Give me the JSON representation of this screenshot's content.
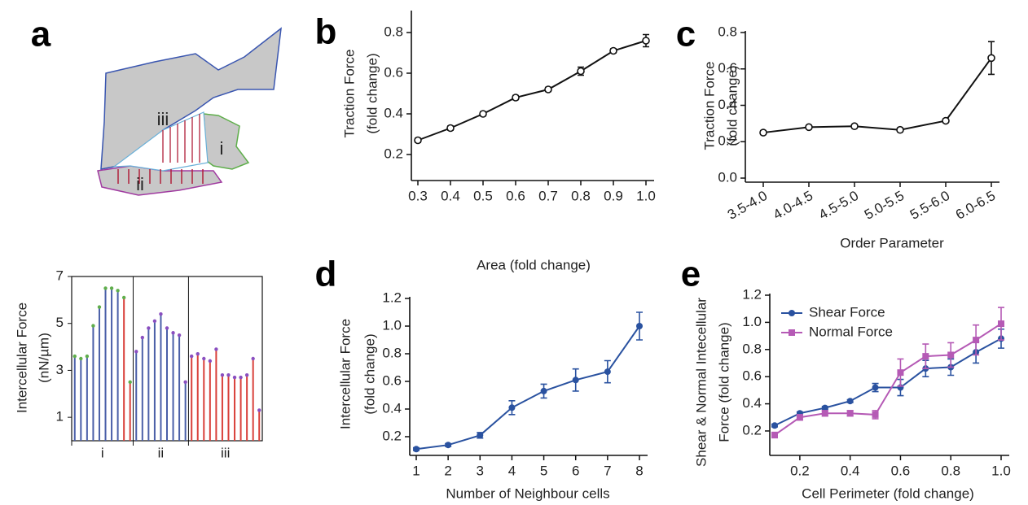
{
  "diagram": {
    "labels": [
      "iii",
      "i",
      "ii"
    ]
  },
  "chart_data": [
    {
      "type": "lollipop",
      "panel": "a",
      "ylabel": [
        "Intercellular Force",
        "(nN/µm)"
      ],
      "categories": [
        "i",
        "ii",
        "iii"
      ],
      "groups": [
        {
          "values": [
            3.6,
            3.5,
            3.6,
            4.9,
            5.7,
            6.5,
            6.5,
            6.4,
            6.1,
            2.5
          ],
          "colors": [
            "#4a5fa8",
            "#4a5fa8",
            "#4a5fa8",
            "#4a5fa8",
            "#4a5fa8",
            "#4a5fa8",
            "#4a5fa8",
            "#4a5fa8",
            "#d9403a",
            "#d9403a"
          ],
          "head_color": "#5fae4b"
        },
        {
          "values": [
            3.8,
            4.4,
            4.8,
            5.1,
            5.4,
            4.8,
            4.6,
            4.5,
            2.5
          ],
          "colors": [
            "#4a5fa8",
            "#4a5fa8",
            "#4a5fa8",
            "#4a5fa8",
            "#4a5fa8",
            "#4a5fa8",
            "#4a5fa8",
            "#4a5fa8",
            "#4a5fa8"
          ],
          "head_color": "#8a4fc0"
        },
        {
          "values": [
            3.6,
            3.7,
            3.5,
            3.4,
            3.9,
            2.8,
            2.8,
            2.7,
            2.7,
            2.8,
            3.5,
            1.3
          ],
          "colors": [
            "#d9403a",
            "#d9403a",
            "#d9403a",
            "#d9403a",
            "#d9403a",
            "#d9403a",
            "#d9403a",
            "#d9403a",
            "#d9403a",
            "#d9403a",
            "#d9403a",
            "#d9403a"
          ],
          "head_color": "#8a4fc0"
        }
      ],
      "ylim": [
        0,
        7
      ],
      "yticks": [
        1,
        3,
        5,
        7
      ]
    },
    {
      "type": "line",
      "panel": "b",
      "ylabel": [
        "Traction Force",
        "(fold change)"
      ],
      "xlabel": "Area (fold change)",
      "x": [
        0.3,
        0.4,
        0.5,
        0.6,
        0.7,
        0.8,
        0.9,
        1.0
      ],
      "series": [
        {
          "color": "#111111",
          "marker": "open-circle",
          "values": [
            0.27,
            0.33,
            0.4,
            0.48,
            0.52,
            0.61,
            0.71,
            0.76
          ],
          "errors": [
            0.01,
            0.01,
            0.01,
            0.01,
            0.01,
            0.02,
            0.01,
            0.03
          ]
        }
      ],
      "xlim": [
        0.3,
        1.0
      ],
      "xticks": [
        0.3,
        0.4,
        0.5,
        0.6,
        0.7,
        0.8,
        0.9,
        {
          "value": 1.0,
          "label": "1.0"
        }
      ],
      "ylim": [
        0.1,
        0.9
      ],
      "yticks": [
        0.2,
        0.4,
        0.6,
        0.8
      ]
    },
    {
      "type": "line",
      "panel": "c",
      "ylabel": [
        "Traction Force",
        "(fold change)"
      ],
      "xlabel": "Order Parameter",
      "categories": [
        "3.5-4.0",
        "4.0-4.5",
        "4.5-5.0",
        "5.0-5.5",
        "5.5-6.0",
        "6.0-6.5"
      ],
      "series": [
        {
          "color": "#111111",
          "marker": "open-circle",
          "values": [
            0.25,
            0.28,
            0.285,
            0.265,
            0.315,
            0.66
          ],
          "errors": [
            0.01,
            0.01,
            0.01,
            0.01,
            0.01,
            0.09
          ]
        }
      ],
      "ylim": [
        0,
        0.8
      ],
      "yticks": [
        {
          "value": 0,
          "label": "0.0"
        },
        0.2,
        0.4,
        0.6,
        0.8
      ]
    },
    {
      "type": "line",
      "panel": "d",
      "ylabel": [
        "Intercellular Force",
        "(fold change)"
      ],
      "xlabel": "Number of Neighbour cells",
      "x": [
        1,
        2,
        3,
        4,
        5,
        6,
        7,
        8
      ],
      "series": [
        {
          "color": "#2a52a0",
          "marker": "circle",
          "values": [
            0.11,
            0.14,
            0.21,
            0.41,
            0.53,
            0.61,
            0.67,
            1.0
          ],
          "errors": [
            0.01,
            0.01,
            0.02,
            0.05,
            0.05,
            0.08,
            0.08,
            0.1
          ]
        }
      ],
      "xlim": [
        1,
        8
      ],
      "xticks": [
        1,
        2,
        3,
        4,
        5,
        6,
        7,
        8
      ],
      "ylim": [
        0.1,
        1.2
      ],
      "yticks": [
        0.2,
        0.4,
        0.6,
        0.8,
        {
          "value": 1.0,
          "label": "1.0"
        },
        1.2
      ]
    },
    {
      "type": "line",
      "panel": "e",
      "ylabel": [
        "Shear & Normal Intecellular",
        "Force (fold change)"
      ],
      "xlabel": "Cell Perimeter (fold change)",
      "x": [
        0.1,
        0.2,
        0.3,
        0.4,
        0.5,
        0.6,
        0.7,
        0.8,
        0.9,
        1.0
      ],
      "series": [
        {
          "name": "Shear Force",
          "color": "#2a52a0",
          "marker": "circle",
          "values": [
            0.24,
            0.33,
            0.37,
            0.42,
            0.52,
            0.52,
            0.66,
            0.67,
            0.78,
            0.88
          ],
          "errors": [
            0.01,
            0.01,
            0.01,
            0.01,
            0.03,
            0.06,
            0.06,
            0.06,
            0.08,
            0.07
          ]
        },
        {
          "name": "Normal Force",
          "color": "#b55ab5",
          "marker": "square",
          "values": [
            0.17,
            0.3,
            0.33,
            0.33,
            0.32,
            0.63,
            0.75,
            0.76,
            0.87,
            0.99
          ],
          "errors": [
            0.02,
            0.02,
            0.02,
            0.02,
            0.03,
            0.1,
            0.09,
            0.09,
            0.11,
            0.12
          ]
        }
      ],
      "legend": "upper-left",
      "xlim": [
        0.1,
        1.0
      ],
      "xticks": [
        0.2,
        0.4,
        0.6,
        0.8,
        {
          "value": 1.0,
          "label": "1.0"
        }
      ],
      "ylim": [
        0.05,
        1.2
      ],
      "yticks": [
        0.2,
        0.4,
        0.6,
        0.8,
        {
          "value": 1.0,
          "label": "1.0"
        },
        1.2
      ]
    }
  ]
}
